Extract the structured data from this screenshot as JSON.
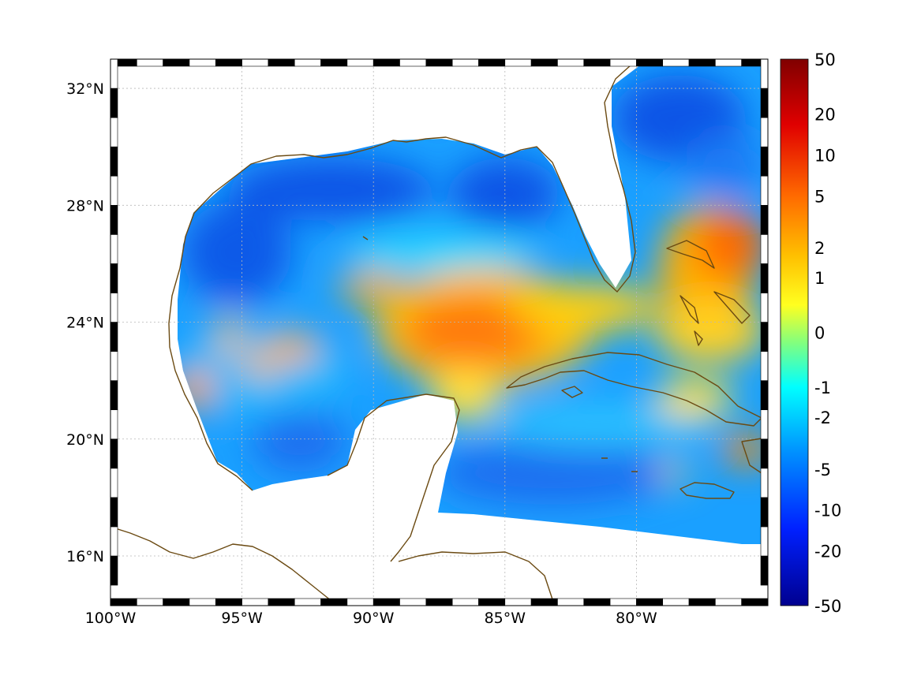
{
  "map": {
    "lon_range": [
      -100,
      -75
    ],
    "lat_range": [
      14.3,
      33
    ],
    "lon_ticks": [
      {
        "value": -100,
        "label": "100°W"
      },
      {
        "value": -95,
        "label": "95°W"
      },
      {
        "value": -90,
        "label": "90°W"
      },
      {
        "value": -85,
        "label": "85°W"
      },
      {
        "value": -80,
        "label": "80°W"
      }
    ],
    "lat_ticks": [
      {
        "value": 32,
        "label": "32°N"
      },
      {
        "value": 28,
        "label": "28°N"
      },
      {
        "value": 24,
        "label": "24°N"
      },
      {
        "value": 20,
        "label": "20°N"
      },
      {
        "value": 16,
        "label": "16°N"
      }
    ],
    "grid": true,
    "coastline_color": "#6b4a12"
  },
  "colorbar": {
    "labels": [
      "50",
      "20",
      "10",
      "5",
      "2",
      "1",
      "0",
      "-1",
      "-2",
      "-5",
      "-10",
      "-20",
      "-50"
    ],
    "colormap": "jet",
    "color_top": "#800000",
    "color_bottom": "#00008f"
  }
}
